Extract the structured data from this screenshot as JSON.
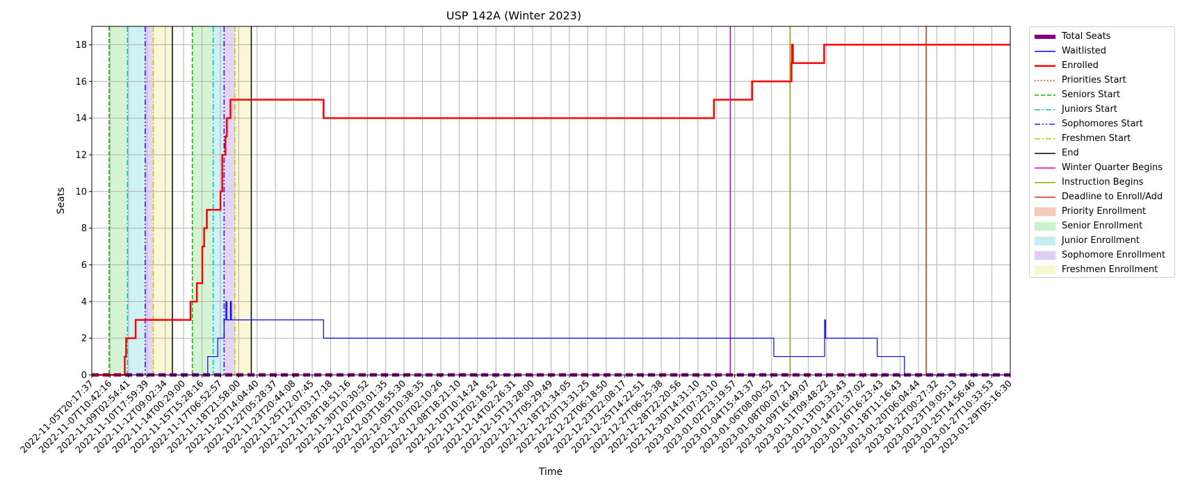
{
  "chart_data": {
    "type": "line",
    "title": "USP 142A (Winter 2023)",
    "xlabel": "Time",
    "ylabel": "Seats",
    "ylim": [
      0,
      19
    ],
    "yticks": [
      0,
      2,
      4,
      6,
      8,
      10,
      12,
      14,
      16,
      18
    ],
    "grid": true,
    "legend_position": "outside-right",
    "xlim": [
      "2022-11-05T20:17:37",
      "2023-01-29T05:16:30"
    ],
    "xticks": [
      "2022-11-05T20:17:37",
      "2022-11-07T10:42:16",
      "2022-11-09T02:54:41",
      "2022-11-10T17:59:39",
      "2022-11-12T09:02:34",
      "2022-11-14T00:29:00",
      "2022-11-15T15:28:16",
      "2022-11-17T06:52:57",
      "2022-11-18T21:58:00",
      "2022-11-20T14:04:40",
      "2022-11-22T05:28:37",
      "2022-11-23T20:44:08",
      "2022-11-25T12:07:45",
      "2022-11-27T03:17:18",
      "2022-11-28T18:51:16",
      "2022-11-30T10:30:52",
      "2022-12-02T03:01:35",
      "2022-12-03T18:55:30",
      "2022-12-05T10:38:35",
      "2022-12-07T02:10:26",
      "2022-12-08T18:21:10",
      "2022-12-10T10:14:24",
      "2022-12-12T02:18:52",
      "2022-12-14T02:26:31",
      "2022-12-15T13:28:00",
      "2022-12-17T05:29:49",
      "2022-12-18T21:34:05",
      "2022-12-20T13:31:25",
      "2022-12-22T06:18:50",
      "2022-12-23T22:08:17",
      "2022-12-25T14:22:51",
      "2022-12-27T06:25:38",
      "2022-12-28T22:20:56",
      "2022-12-30T14:31:10",
      "2023-01-01T07:23:10",
      "2023-01-02T23:19:57",
      "2023-01-04T15:43:37",
      "2023-01-06T08:00:52",
      "2023-01-08T00:07:21",
      "2023-01-09T16:49:07",
      "2023-01-11T09:48:22",
      "2023-01-13T03:33:43",
      "2023-01-14T21:37:02",
      "2023-01-16T16:23:43",
      "2023-01-18T11:16:43",
      "2023-01-20T06:04:44",
      "2023-01-22T00:27:32",
      "2023-01-23T19:05:13",
      "2023-01-25T14:56:46",
      "2023-01-27T10:33:53",
      "2023-01-29T05:16:30"
    ],
    "series": [
      {
        "name": "Total Seats",
        "color": "#800080",
        "style": "dashed-thick",
        "x": [
          "2022-11-05T20:17:37",
          "2023-01-29T05:16:30"
        ],
        "y": [
          0,
          0
        ]
      },
      {
        "name": "Waitlisted",
        "color": "#0000ff",
        "style": "solid",
        "x": [
          "2022-11-05T20:17:37",
          "2022-11-16T12:00:00",
          "2022-11-16T12:00:00",
          "2022-11-17T10:00:00",
          "2022-11-17T10:00:00",
          "2022-11-18T00:00:00",
          "2022-11-18T00:00:00",
          "2022-11-18T04:00:00",
          "2022-11-18T04:00:00",
          "2022-11-18T06:00:00",
          "2022-11-18T06:00:00",
          "2022-11-18T14:00:00",
          "2022-11-18T14:00:00",
          "2022-11-18T16:00:00",
          "2022-11-18T16:00:00",
          "2022-11-27T03:17:18",
          "2022-11-27T03:17:18",
          "2023-01-07T12:00:00",
          "2023-01-07T12:00:00",
          "2023-01-12T04:00:00",
          "2023-01-12T04:00:00",
          "2023-01-12T06:00:00",
          "2023-01-12T06:00:00",
          "2023-01-12T10:00:00",
          "2023-01-12T10:00:00",
          "2023-01-17T00:00:00",
          "2023-01-17T00:00:00",
          "2023-01-19T12:00:00",
          "2023-01-19T12:00:00",
          "2023-01-29T05:16:30"
        ],
        "y": [
          0,
          0,
          1,
          1,
          2,
          2,
          3,
          3,
          4,
          4,
          3,
          3,
          4,
          4,
          3,
          3,
          2,
          2,
          1,
          1,
          3,
          3,
          2,
          2,
          2,
          2,
          1,
          1,
          0,
          0
        ]
      },
      {
        "name": "Enrolled",
        "color": "#ff0000",
        "style": "solid-thick",
        "x": [
          "2022-11-05T20:17:37",
          "2022-11-08T21:00:00",
          "2022-11-08T21:00:00",
          "2022-11-09T00:00:00",
          "2022-11-09T00:00:00",
          "2022-11-09T21:00:00",
          "2022-11-09T21:00:00",
          "2022-11-14T22:00:00",
          "2022-11-14T22:00:00",
          "2022-11-15T12:00:00",
          "2022-11-15T12:00:00",
          "2022-11-16T00:00:00",
          "2022-11-16T00:00:00",
          "2022-11-16T04:00:00",
          "2022-11-16T04:00:00",
          "2022-11-16T10:00:00",
          "2022-11-16T10:00:00",
          "2022-11-17T16:00:00",
          "2022-11-17T16:00:00",
          "2022-11-17T20:00:00",
          "2022-11-17T20:00:00",
          "2022-11-18T03:00:00",
          "2022-11-18T03:00:00",
          "2022-11-18T06:00:00",
          "2022-11-18T06:00:00",
          "2022-11-18T10:00:00",
          "2022-11-18T10:00:00",
          "2022-11-18T12:00:00",
          "2022-11-18T12:00:00",
          "2022-11-18T14:00:00",
          "2022-11-18T14:00:00",
          "2022-11-27T03:17:18",
          "2022-11-27T03:17:18",
          "2023-01-02T00:00:00",
          "2023-01-02T00:00:00",
          "2023-01-05T12:00:00",
          "2023-01-05T12:00:00",
          "2023-01-09T03:00:00",
          "2023-01-09T03:00:00",
          "2023-01-09T04:00:00",
          "2023-01-09T04:00:00",
          "2023-01-09T06:00:00",
          "2023-01-09T06:00:00",
          "2023-01-12T03:00:00",
          "2023-01-12T03:00:00",
          "2023-01-19T12:00:00",
          "2023-01-19T12:00:00",
          "2023-01-29T05:16:30"
        ],
        "y": [
          0,
          0,
          1,
          1,
          2,
          2,
          3,
          3,
          4,
          4,
          5,
          5,
          7,
          7,
          8,
          8,
          9,
          9,
          10,
          10,
          12,
          12,
          13,
          13,
          14,
          14,
          14,
          14,
          14,
          14,
          15,
          15,
          14,
          14,
          15,
          15,
          16,
          16,
          17,
          17,
          18,
          18,
          17,
          17,
          18,
          18,
          18,
          18
        ]
      }
    ],
    "vertical_lines": [
      {
        "name": "Priorities Start",
        "color": "#ff0000",
        "style": "dotted",
        "x": [
          "2022-11-07T10:42:16",
          "2022-11-15T02:00:00"
        ]
      },
      {
        "name": "Seniors Start",
        "color": "#00bb00",
        "style": "dashed",
        "x": [
          "2022-11-07T10:42:16",
          "2022-11-15T02:00:00"
        ]
      },
      {
        "name": "Juniors Start",
        "color": "#00bfbf",
        "style": "dashdot",
        "x": [
          "2022-11-09T02:54:41",
          "2022-11-17T00:00:00"
        ]
      },
      {
        "name": "Sophomores Start",
        "color": "#5500ff",
        "style": "dashdotdot",
        "x": [
          "2022-11-10T17:59:39",
          "2022-11-18T00:00:00"
        ]
      },
      {
        "name": "Freshmen Start",
        "color": "#d4c200",
        "style": "dashdot",
        "x": [
          "2022-11-11T12:00:00",
          "2022-11-19T00:00:00"
        ]
      },
      {
        "name": "End",
        "color": "#000000",
        "style": "solid",
        "x": [
          "2022-11-13T06:00:00",
          "2022-11-20T12:00:00"
        ]
      },
      {
        "name": "Winter Quarter Begins",
        "color": "#cc00cc",
        "style": "solid",
        "x": [
          "2023-01-03T12:00:00"
        ]
      },
      {
        "name": "Instruction Begins",
        "color": "#88aa00",
        "style": "solid",
        "x": [
          "2023-01-09T00:00:00"
        ]
      },
      {
        "name": "Deadline to Enroll/Add",
        "color": "#cc3300",
        "style": "solid",
        "x": [
          "2023-01-21T12:00:00"
        ]
      }
    ],
    "spans": [
      {
        "name": "Priority Enrollment",
        "color": "#f6c9bd",
        "ranges": [
          [
            "2022-11-07T10:42:16",
            "2022-11-07T10:42:16"
          ],
          [
            "2022-11-15T02:00:00",
            "2022-11-15T02:00:00"
          ]
        ]
      },
      {
        "name": "Senior Enrollment",
        "color": "#ccf2cc",
        "ranges": [
          [
            "2022-11-07T10:42:16",
            "2022-11-09T02:54:41"
          ],
          [
            "2022-11-15T02:00:00",
            "2022-11-17T00:00:00"
          ]
        ]
      },
      {
        "name": "Junior Enrollment",
        "color": "#c5eef2",
        "ranges": [
          [
            "2022-11-09T02:54:41",
            "2022-11-10T17:59:39"
          ],
          [
            "2022-11-17T00:00:00",
            "2022-11-18T00:00:00"
          ]
        ]
      },
      {
        "name": "Sophomore Enrollment",
        "color": "#dccff4",
        "ranges": [
          [
            "2022-11-10T17:59:39",
            "2022-11-11T12:00:00"
          ],
          [
            "2022-11-18T00:00:00",
            "2022-11-19T00:00:00"
          ]
        ]
      },
      {
        "name": "Freshmen Enrollment",
        "color": "#f8f6cc",
        "ranges": [
          [
            "2022-11-11T12:00:00",
            "2022-11-13T06:00:00"
          ],
          [
            "2022-11-19T00:00:00",
            "2022-11-20T12:00:00"
          ]
        ]
      }
    ],
    "legend": [
      {
        "label": "Total Seats",
        "kind": "line",
        "color": "#800080",
        "style": "thick"
      },
      {
        "label": "Waitlisted",
        "kind": "line",
        "color": "#0000ff",
        "style": "solid"
      },
      {
        "label": "Enrolled",
        "kind": "line",
        "color": "#ff0000",
        "style": "solid-thick"
      },
      {
        "label": "Priorities Start",
        "kind": "line",
        "color": "#ff0000",
        "style": "dotted"
      },
      {
        "label": "Seniors Start",
        "kind": "line",
        "color": "#00bb00",
        "style": "dashed"
      },
      {
        "label": "Juniors Start",
        "kind": "line",
        "color": "#00bfbf",
        "style": "dashdot"
      },
      {
        "label": "Sophomores Start",
        "kind": "line",
        "color": "#5500ff",
        "style": "dashdotdot"
      },
      {
        "label": "Freshmen Start",
        "kind": "line",
        "color": "#d4c200",
        "style": "dashdot"
      },
      {
        "label": "End",
        "kind": "line",
        "color": "#000000",
        "style": "solid"
      },
      {
        "label": "Winter Quarter Begins",
        "kind": "line",
        "color": "#cc00cc",
        "style": "solid"
      },
      {
        "label": "Instruction Begins",
        "kind": "line",
        "color": "#88aa00",
        "style": "solid"
      },
      {
        "label": "Deadline to Enroll/Add",
        "kind": "line",
        "color": "#cc3300",
        "style": "solid"
      },
      {
        "label": "Priority Enrollment",
        "kind": "patch",
        "color": "#f6c9bd"
      },
      {
        "label": "Senior Enrollment",
        "kind": "patch",
        "color": "#ccf2cc"
      },
      {
        "label": "Junior Enrollment",
        "kind": "patch",
        "color": "#c5eef2"
      },
      {
        "label": "Sophomore Enrollment",
        "kind": "patch",
        "color": "#dccff4"
      },
      {
        "label": "Freshmen Enrollment",
        "kind": "patch",
        "color": "#f8f6cc"
      }
    ]
  }
}
